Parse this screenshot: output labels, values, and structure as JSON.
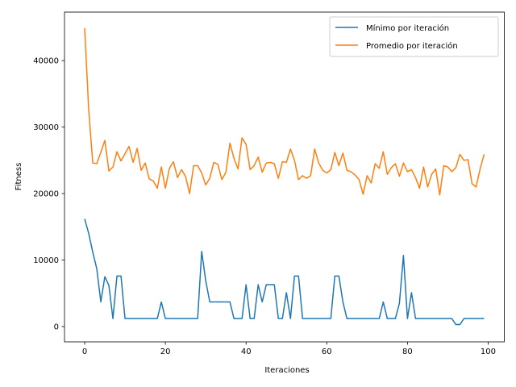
{
  "chart_data": {
    "type": "line",
    "title": "",
    "xlabel": "Iteraciones",
    "ylabel": "Fitness",
    "xlim": [
      -5,
      104
    ],
    "ylim": [
      -2300,
      47300
    ],
    "xticks": [
      0,
      20,
      40,
      60,
      80,
      100
    ],
    "yticks": [
      0,
      10000,
      20000,
      30000,
      40000
    ],
    "xtick_labels": [
      "0",
      "20",
      "40",
      "60",
      "80",
      "100"
    ],
    "ytick_labels": [
      "0",
      "10000",
      "20000",
      "30000",
      "40000"
    ],
    "grid": false,
    "legend_position": "top-right",
    "series": [
      {
        "name": "Mínimo por iteración",
        "color": "#1f77b4",
        "values": [
          16200,
          14000,
          11200,
          8700,
          3700,
          7500,
          6200,
          1200,
          7600,
          7600,
          1200,
          1200,
          1200,
          1200,
          1200,
          1200,
          1200,
          1200,
          1200,
          3700,
          1200,
          1200,
          1200,
          1200,
          1200,
          1200,
          1200,
          1200,
          1200,
          11300,
          6900,
          3700,
          3700,
          3700,
          3700,
          3700,
          3700,
          1200,
          1200,
          1200,
          6300,
          1200,
          1200,
          6300,
          3700,
          6300,
          6300,
          6300,
          1200,
          1200,
          5100,
          1200,
          7600,
          7600,
          1200,
          1200,
          1200,
          1200,
          1200,
          1200,
          1200,
          1200,
          7600,
          7600,
          3700,
          1200,
          1200,
          1200,
          1200,
          1200,
          1200,
          1200,
          1200,
          1200,
          3700,
          1200,
          1200,
          1200,
          3500,
          10700,
          1200,
          5100,
          1200,
          1200,
          1200,
          1200,
          1200,
          1200,
          1200,
          1200,
          1200,
          1200,
          300,
          300,
          1200,
          1200,
          1200,
          1200,
          1200,
          1200
        ]
      },
      {
        "name": "Promedio por iteración",
        "color": "#ff7f0e",
        "values": [
          44900,
          32600,
          24600,
          24500,
          26200,
          28000,
          23400,
          24000,
          26300,
          24900,
          26000,
          27100,
          24700,
          26800,
          23500,
          24600,
          22200,
          21900,
          20800,
          24000,
          20800,
          23800,
          24800,
          22400,
          23600,
          22600,
          20000,
          24200,
          24200,
          23100,
          21300,
          22300,
          24700,
          24400,
          22100,
          23200,
          27600,
          25300,
          23700,
          28400,
          27400,
          23600,
          24200,
          25500,
          23200,
          24600,
          24700,
          24500,
          22300,
          24800,
          24700,
          26700,
          25000,
          22100,
          22700,
          22300,
          22700,
          26700,
          24600,
          23500,
          23100,
          23600,
          26200,
          24200,
          26100,
          23500,
          23300,
          22800,
          22100,
          19900,
          22700,
          21600,
          24500,
          23800,
          26300,
          22900,
          23900,
          24500,
          22600,
          24600,
          23300,
          23600,
          22400,
          20800,
          24000,
          21000,
          22900,
          23700,
          19800,
          24200,
          24000,
          23300,
          23900,
          25900,
          25000,
          25100,
          21500,
          21000,
          23700,
          25900
        ]
      }
    ]
  }
}
